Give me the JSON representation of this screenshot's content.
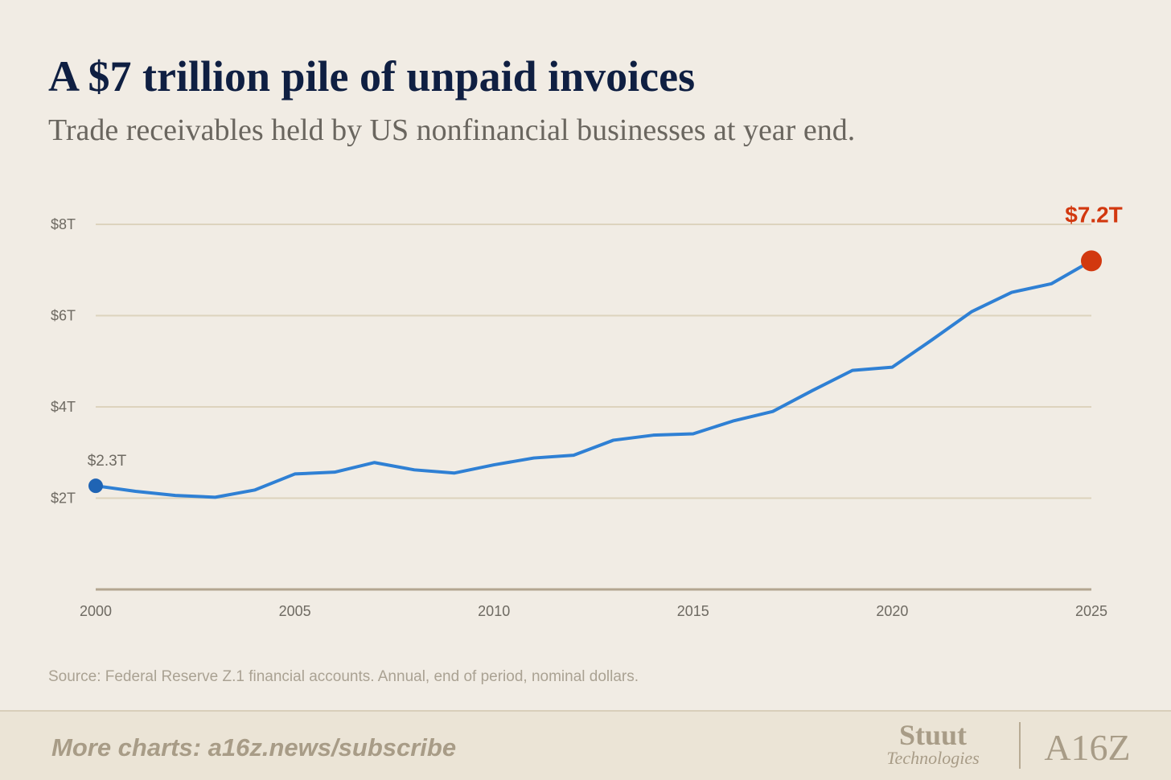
{
  "chart_data": {
    "type": "line",
    "title": "A $7 trillion pile of unpaid invoices",
    "subtitle": "Trade receivables held by US nonfinancial businesses at year end.",
    "x": [
      2000,
      2001,
      2002,
      2003,
      2004,
      2005,
      2006,
      2007,
      2008,
      2009,
      2010,
      2011,
      2012,
      2013,
      2014,
      2015,
      2016,
      2017,
      2018,
      2019,
      2020,
      2021,
      2022,
      2023,
      2024,
      2025
    ],
    "values": [
      2.27,
      2.15,
      2.06,
      2.02,
      2.18,
      2.53,
      2.57,
      2.78,
      2.62,
      2.55,
      2.73,
      2.88,
      2.94,
      3.27,
      3.38,
      3.41,
      3.69,
      3.9,
      4.36,
      4.8,
      4.87,
      5.47,
      6.09,
      6.51,
      6.7,
      7.2
    ],
    "value_labels": [
      "$2.3T",
      null,
      null,
      null,
      null,
      null,
      null,
      null,
      null,
      null,
      null,
      null,
      null,
      null,
      null,
      null,
      null,
      null,
      null,
      null,
      null,
      null,
      null,
      null,
      null,
      "$7.2T"
    ],
    "label_colors": [
      "#1f64b4",
      null,
      null,
      null,
      null,
      null,
      null,
      null,
      null,
      null,
      null,
      null,
      null,
      null,
      null,
      null,
      null,
      null,
      null,
      null,
      null,
      null,
      null,
      null,
      null,
      "#d2380f"
    ],
    "color": "#2f80d4",
    "xlim": [
      2000,
      2025
    ],
    "xticks": [
      2000,
      2005,
      2010,
      2015,
      2020,
      2025
    ],
    "ylim": [
      0,
      8
    ],
    "yticks": [
      {
        "value": 2,
        "label": "$2T"
      },
      {
        "value": 4,
        "label": "$4T"
      },
      {
        "value": 6,
        "label": "$6T"
      },
      {
        "value": 8,
        "label": "$8T"
      }
    ],
    "grid": true,
    "source": "Source: Federal Reserve Z.1 financial accounts. Annual, end of period, nominal dollars."
  },
  "footer": {
    "cta": "More charts: a16z.news/subscribe",
    "logo_top": "Stuut",
    "logo_bottom": "Technologies",
    "logo_right": "A16Z"
  }
}
